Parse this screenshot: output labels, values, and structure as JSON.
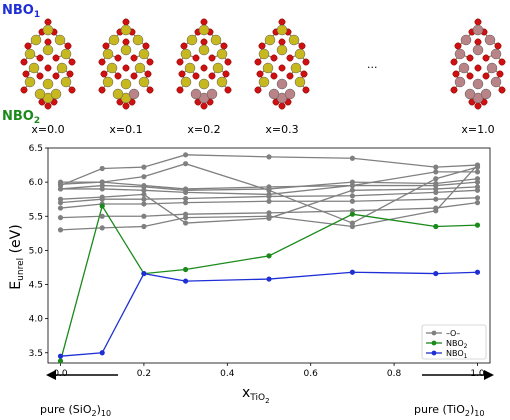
{
  "figure": {
    "top_label_1": "NBO",
    "top_label_1_sub": "1",
    "top_label_2": "NBO",
    "top_label_2_sub": "2",
    "structures": [
      {
        "label": "x=0.0",
        "fraction_ti": 0.0
      },
      {
        "label": "x=0.1",
        "fraction_ti": 0.1
      },
      {
        "label": "x=0.2",
        "fraction_ti": 0.2
      },
      {
        "label": "x=0.3",
        "fraction_ti": 0.3
      },
      {
        "label": "x=1.0",
        "fraction_ti": 1.0
      }
    ],
    "ellipsis": "...",
    "pure_left_prefix": "pure (SiO",
    "pure_left_sub": "2",
    "pure_left_suffix": ")",
    "pure_left_subscript2": "10",
    "pure_right_prefix": "pure (TiO",
    "pure_right_sub": "2",
    "pure_right_suffix": ")",
    "pure_right_subscript2": "10",
    "colors": {
      "si_atom": "#c8b820",
      "ti_atom": "#b98488",
      "o_atom": "#d01010",
      "grey_series": "#808080",
      "nbo2": "#1a8a1a",
      "nbo1": "#1f2fd6"
    }
  },
  "chart_data": {
    "type": "line",
    "xlabel_main": "x",
    "xlabel_sub": "TiO",
    "xlabel_sub2": "2",
    "ylabel_main": "E",
    "ylabel_sub": "unrel",
    "ylabel_unit": " (eV)",
    "xlim": [
      -0.03,
      1.03
    ],
    "ylim": [
      3.35,
      6.5
    ],
    "xticks": [
      "0.0",
      "0.2",
      "0.4",
      "0.6",
      "0.8",
      "1.0"
    ],
    "yticks": [
      "3.5",
      "4.0",
      "4.5",
      "5.0",
      "5.5",
      "6.0",
      "6.5"
    ],
    "x": [
      0.0,
      0.1,
      0.2,
      0.3,
      0.5,
      0.7,
      0.9,
      1.0
    ],
    "legend": [
      "–O–",
      "NBO",
      "NBO"
    ],
    "legend_subs": [
      "",
      "2",
      "1"
    ],
    "legend_position": "lower-right",
    "series": [
      {
        "group": "O",
        "values": [
          5.95,
          6.2,
          6.22,
          6.4,
          6.37,
          6.35,
          6.22,
          6.25
        ]
      },
      {
        "group": "O",
        "values": [
          6.0,
          6.0,
          6.08,
          6.27,
          5.88,
          5.4,
          6.05,
          6.22
        ]
      },
      {
        "group": "O",
        "values": [
          5.97,
          6.0,
          5.95,
          5.9,
          5.93,
          5.95,
          6.15,
          6.15
        ]
      },
      {
        "group": "O",
        "values": [
          5.9,
          5.95,
          5.93,
          5.88,
          5.9,
          6.0,
          5.98,
          6.05
        ]
      },
      {
        "group": "O",
        "values": [
          5.75,
          5.78,
          5.82,
          5.4,
          5.47,
          5.88,
          5.9,
          5.93
        ]
      },
      {
        "group": "O",
        "values": [
          5.7,
          5.75,
          5.75,
          5.76,
          5.79,
          5.8,
          5.85,
          5.88
        ]
      },
      {
        "group": "O",
        "values": [
          5.62,
          5.68,
          5.68,
          5.7,
          5.72,
          5.72,
          5.75,
          5.77
        ]
      },
      {
        "group": "O",
        "values": [
          5.48,
          5.5,
          5.5,
          5.53,
          5.55,
          5.58,
          5.62,
          5.7
        ]
      },
      {
        "group": "O",
        "values": [
          5.3,
          5.33,
          5.35,
          5.48,
          5.5,
          5.35,
          5.58,
          6.25
        ]
      },
      {
        "group": "O",
        "values": [
          5.9,
          5.9,
          5.88,
          5.85,
          5.82,
          5.95,
          5.95,
          6.0
        ]
      },
      {
        "group": "NBO2",
        "values": [
          3.38,
          5.65,
          4.66,
          4.72,
          4.92,
          5.53,
          5.35,
          5.37
        ]
      },
      {
        "group": "NBO1",
        "values": [
          3.45,
          3.5,
          4.66,
          4.55,
          4.58,
          4.68,
          4.66,
          4.68
        ]
      }
    ]
  }
}
